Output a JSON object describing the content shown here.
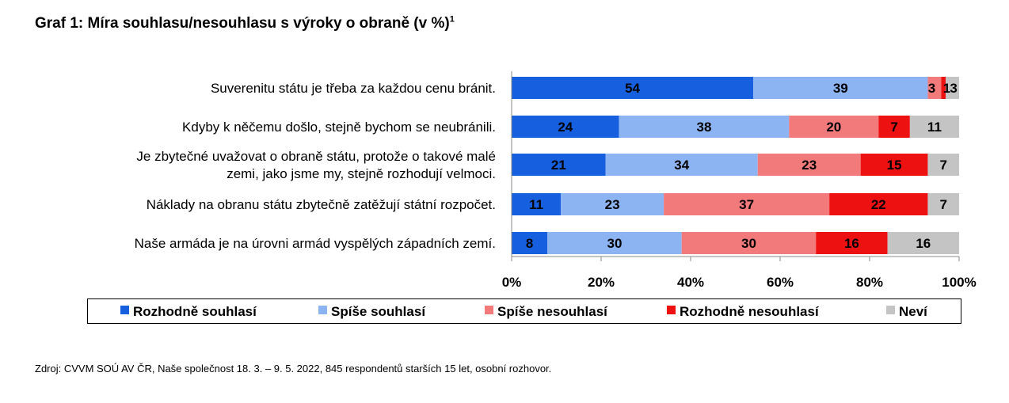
{
  "title": "Graf 1: Míra souhlasu/nesouhlasu s výroky o obraně (v %)",
  "title_sup": "1",
  "source": "Zdroj: CVVM SOÚ AV ČR, Naše společnost 18. 3. – 9. 5.  2022, 845 respondentů starších 15 let, osobní rozhovor.",
  "chart_data": {
    "type": "bar",
    "orientation": "horizontal",
    "stacked": true,
    "categories": [
      [
        "Suverenitu státu je třeba za každou cenu bránit."
      ],
      [
        "Kdyby k něčemu došlo, stejně bychom se neubránili."
      ],
      [
        "Je zbytečné uvažovat o obraně státu, protože o takové malé",
        "zemi, jako jsme my, stejně rozhodují velmoci."
      ],
      [
        "Náklady na obranu státu zbytečně zatěžují státní rozpočet."
      ],
      [
        "Naše armáda je na úrovni armád vyspělých západních zemí."
      ]
    ],
    "series": [
      {
        "name": "Rozhodně souhlasí",
        "color": "#1660E0",
        "values": [
          54,
          24,
          21,
          11,
          8
        ]
      },
      {
        "name": "Spíše souhlasí",
        "color": "#8CB4F2",
        "values": [
          39,
          38,
          34,
          23,
          30
        ]
      },
      {
        "name": "Spíše nesouhlasí",
        "color": "#F27A7A",
        "values": [
          3,
          20,
          23,
          37,
          30
        ]
      },
      {
        "name": "Rozhodně nesouhlasí",
        "color": "#EE1111",
        "values": [
          1,
          7,
          15,
          22,
          16
        ]
      },
      {
        "name": "Neví",
        "color": "#C4C4C4",
        "values": [
          3,
          11,
          7,
          7,
          16
        ]
      }
    ],
    "xlim": [
      0,
      100
    ],
    "xticks": [
      "0%",
      "20%",
      "40%",
      "60%",
      "80%",
      "100%"
    ],
    "legend_position": "bottom",
    "grid": false
  }
}
